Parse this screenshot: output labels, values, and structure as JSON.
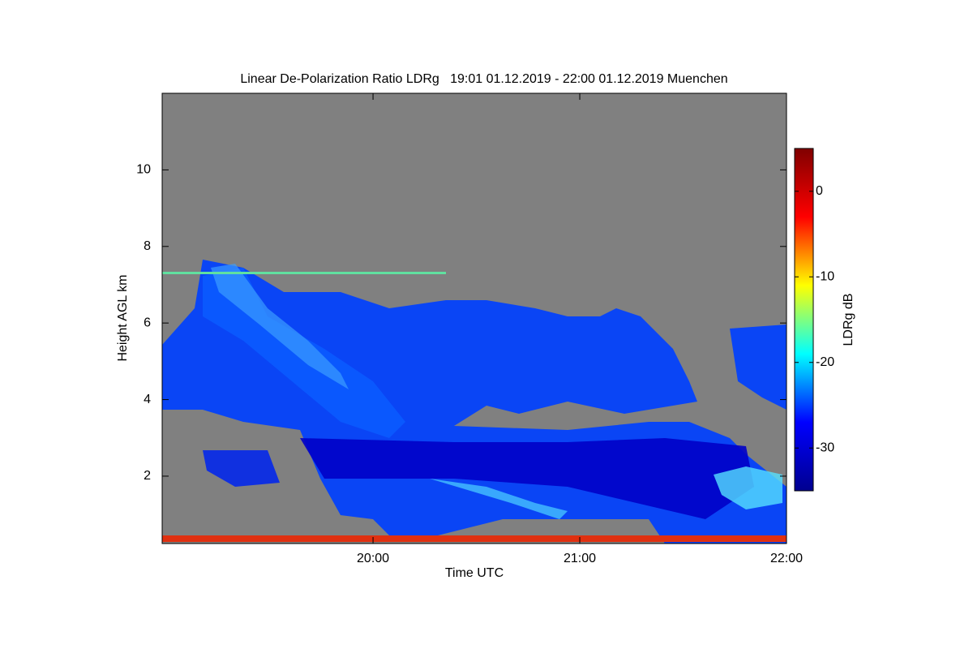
{
  "chart_data": {
    "type": "heatmap",
    "title": "Linear De-Polarization Ratio LDRg   19:01 01.12.2019 - 22:00 01.12.2019 Muenchen",
    "x_label": "Time UTC",
    "y_label": "Height AGL km",
    "xlim": [
      18.98,
      22
    ],
    "xticks": [
      {
        "value": 20,
        "label": "20:00"
      },
      {
        "value": 21,
        "label": "21:00"
      },
      {
        "value": 22,
        "label": "22:00"
      }
    ],
    "ylim": [
      0.24,
      12
    ],
    "yticks": [
      2,
      4,
      6,
      8,
      10
    ],
    "background_color": "#808080",
    "colorbar": {
      "label": "LDRg dB",
      "clim": [
        -35,
        5
      ],
      "ticks": [
        0,
        -10,
        -20,
        -30
      ],
      "colors": [
        "#00008f",
        "#0000ff",
        "#00ffff",
        "#ffff00",
        "#ff0000",
        "#800000"
      ]
    }
  }
}
